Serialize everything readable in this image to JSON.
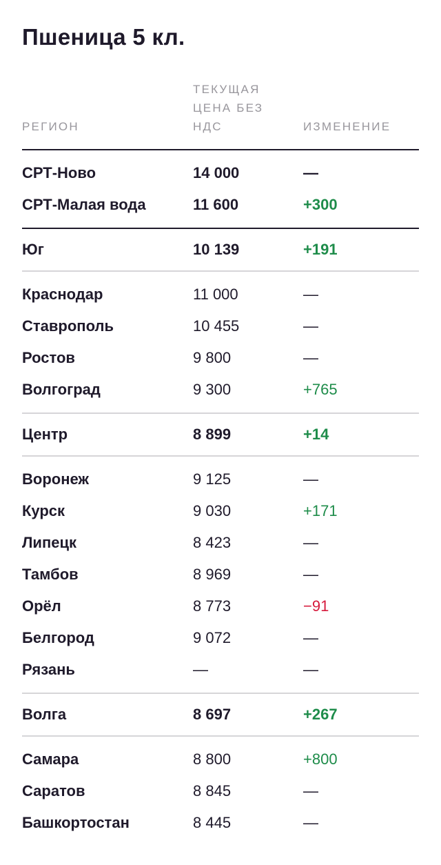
{
  "title": "Пшеница 5 кл.",
  "headers": {
    "region": "РЕГИОН",
    "price": "ТЕКУЩАЯ ЦЕНА БЕЗ НДС",
    "change": "ИЗМЕНЕНИЕ"
  },
  "rows": [
    {
      "region": "СРТ-Ново",
      "price": "14 000",
      "change": "—",
      "type": "highlight"
    },
    {
      "region": "СРТ-Малая вода",
      "price": "11 600",
      "change": "+300",
      "type": "highlight"
    },
    {
      "region": "Юг",
      "price": "10 139",
      "change": "+191",
      "type": "summary"
    },
    {
      "region": "Краснодар",
      "price": "11 000",
      "change": "—",
      "type": "detail"
    },
    {
      "region": "Ставрополь",
      "price": "10 455",
      "change": "—",
      "type": "detail"
    },
    {
      "region": "Ростов",
      "price": "9 800",
      "change": "—",
      "type": "detail"
    },
    {
      "region": "Волгоград",
      "price": "9 300",
      "change": "+765",
      "type": "detail"
    },
    {
      "region": "Центр",
      "price": "8 899",
      "change": "+14",
      "type": "summary"
    },
    {
      "region": "Воронеж",
      "price": "9 125",
      "change": "—",
      "type": "detail"
    },
    {
      "region": "Курск",
      "price": "9 030",
      "change": "+171",
      "type": "detail"
    },
    {
      "region": "Липецк",
      "price": "8 423",
      "change": "—",
      "type": "detail"
    },
    {
      "region": "Тамбов",
      "price": "8 969",
      "change": "—",
      "type": "detail"
    },
    {
      "region": "Орёл",
      "price": "8 773",
      "change": "−91",
      "type": "detail"
    },
    {
      "region": "Белгород",
      "price": "9 072",
      "change": "—",
      "type": "detail"
    },
    {
      "region": "Рязань",
      "price": "—",
      "change": "—",
      "type": "detail"
    },
    {
      "region": "Волга",
      "price": "8 697",
      "change": "+267",
      "type": "summary"
    },
    {
      "region": "Самара",
      "price": "8 800",
      "change": "+800",
      "type": "detail"
    },
    {
      "region": "Саратов",
      "price": "8 845",
      "change": "—",
      "type": "detail"
    },
    {
      "region": "Башкортостан",
      "price": "8 445",
      "change": "—",
      "type": "detail"
    }
  ],
  "colors": {
    "positive": "#1e8c4a",
    "negative": "#d61a3c",
    "text": "#1f1a2b",
    "header": "#98969c",
    "divider_light": "#d6d5d8"
  }
}
